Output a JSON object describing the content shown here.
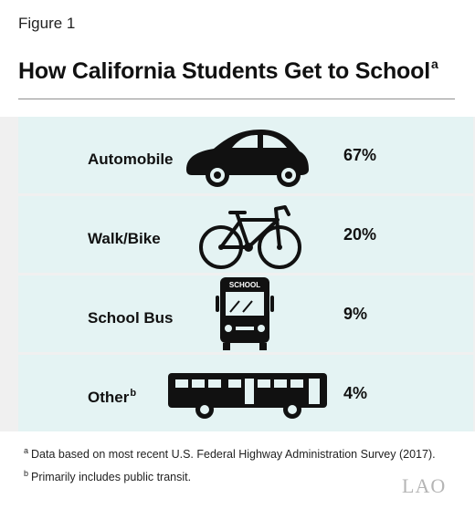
{
  "figure_label": "Figure 1",
  "title": "How California Students Get to School",
  "title_footnote_marker": "a",
  "logo_text": "LAO",
  "footnotes": [
    {
      "marker": "a",
      "text": "Data based on most recent U.S. Federal Highway Administration Survey (2017)."
    },
    {
      "marker": "b",
      "text": "Primarily includes public transit."
    }
  ],
  "chart_data": {
    "type": "table",
    "categories": [
      "Automobile",
      "Walk/Bike",
      "School Bus",
      "Other"
    ],
    "values": [
      67,
      20,
      9,
      4
    ],
    "value_labels": [
      "67%",
      "20%",
      "9%",
      "4%"
    ],
    "category_markers": [
      "",
      "",
      "",
      "b"
    ],
    "icons": [
      "car-icon",
      "bicycle-icon",
      "school-bus-icon",
      "transit-bus-icon"
    ],
    "bus_sign_text": "SCHOOL",
    "colors": {
      "row_background": "#e4f3f3",
      "panel_background": "#f0f0f0",
      "icon": "#111111"
    }
  }
}
